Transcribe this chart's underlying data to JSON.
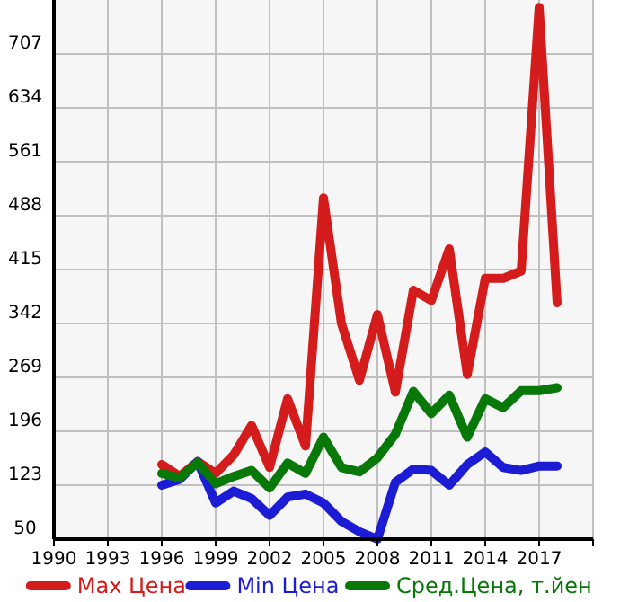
{
  "chart_data": {
    "type": "line",
    "x": [
      1996,
      1997,
      1998,
      1999,
      2000,
      2001,
      2002,
      2003,
      2004,
      2005,
      2006,
      2007,
      2008,
      2009,
      2010,
      2011,
      2012,
      2013,
      2014,
      2015,
      2016,
      2017,
      2018
    ],
    "series": [
      {
        "name": "Max Цена",
        "color": "#d41c1c",
        "values": [
          151,
          135,
          155,
          139,
          164,
          204,
          147,
          240,
          176,
          512,
          342,
          265,
          354,
          249,
          387,
          373,
          443,
          273,
          403,
          403,
          413,
          770,
          370
        ]
      },
      {
        "name": "Min Цена",
        "color": "#1c1cd4",
        "values": [
          123,
          131,
          155,
          99,
          115,
          105,
          82,
          107,
          111,
          99,
          74,
          60,
          50,
          127,
          145,
          143,
          123,
          151,
          168,
          147,
          143,
          149,
          149
        ]
      },
      {
        "name": "Сред.Цена, т.йен",
        "color": "#087808",
        "values": [
          139,
          133,
          154,
          125,
          135,
          143,
          119,
          153,
          139,
          188,
          147,
          141,
          160,
          192,
          250,
          220,
          245,
          188,
          240,
          228,
          251,
          251,
          255
        ]
      }
    ],
    "xlim": [
      1990,
      2020
    ],
    "xticks": [
      1990,
      1993,
      1996,
      1999,
      2002,
      2005,
      2008,
      2011,
      2014,
      2017
    ],
    "ylim": [
      50,
      780
    ],
    "yticks": [
      50,
      123,
      196,
      269,
      342,
      415,
      488,
      561,
      634,
      707
    ],
    "grid": true,
    "legend": "bottom",
    "marker": "none",
    "line_style": "solid"
  }
}
